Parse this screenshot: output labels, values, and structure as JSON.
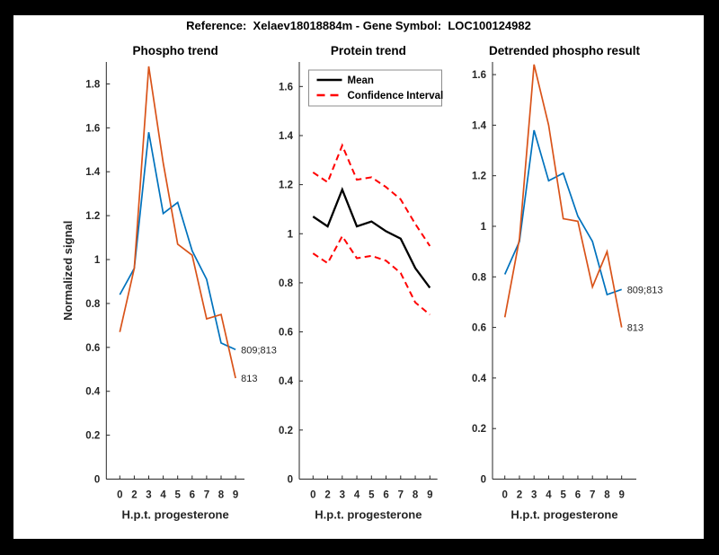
{
  "figure": {
    "title": "Reference:  Xelaev18018884m - Gene Symbol:  LOC100124982"
  },
  "colors": {
    "blue": "#0072BD",
    "orange": "#D95319",
    "red": "#FF0000",
    "black": "#000000",
    "axis": "#262626",
    "end_label_text": "#262626",
    "legend_border": "#8c8c8c",
    "background_frame": "#000000",
    "canvas": "#ffffff"
  },
  "chart_data": [
    {
      "id": "phospho-trend",
      "type": "line",
      "title": "Phospho trend",
      "xlabel": "H.p.t. progesterone",
      "ylabel": "Normalized signal",
      "grid": false,
      "categories": [
        "0",
        "2",
        "3",
        "4",
        "5",
        "6",
        "7",
        "8",
        "9"
      ],
      "ylim": [
        0,
        1.9
      ],
      "yticks": [
        "0",
        "0.2",
        "0.4",
        "0.6",
        "0.8",
        "1",
        "1.2",
        "1.4",
        "1.6",
        "1.8"
      ],
      "series": [
        {
          "name": "809;813",
          "color_key": "blue",
          "style": "solid",
          "width": 1.7,
          "end_label": "809;813",
          "values": [
            0.84,
            0.96,
            1.58,
            1.21,
            1.26,
            1.04,
            0.91,
            0.62,
            0.59
          ]
        },
        {
          "name": "813",
          "color_key": "orange",
          "style": "solid",
          "width": 1.7,
          "end_label": "813",
          "values": [
            0.67,
            0.96,
            1.88,
            1.44,
            1.07,
            1.02,
            0.73,
            0.75,
            0.46
          ]
        }
      ]
    },
    {
      "id": "protein-trend",
      "type": "line",
      "title": "Protein trend",
      "xlabel": "H.p.t. progesterone",
      "ylabel": "",
      "grid": false,
      "categories": [
        "0",
        "2",
        "3",
        "4",
        "5",
        "6",
        "7",
        "8",
        "9"
      ],
      "ylim": [
        0,
        1.7
      ],
      "yticks": [
        "0",
        "0.2",
        "0.4",
        "0.6",
        "0.8",
        "1",
        "1.2",
        "1.4",
        "1.6"
      ],
      "legend": {
        "position": "top-left",
        "items": [
          {
            "label": "Mean",
            "color_key": "black",
            "style": "solid"
          },
          {
            "label": "Confidence Interval",
            "color_key": "red",
            "style": "dashed"
          }
        ]
      },
      "series": [
        {
          "name": "Mean",
          "color_key": "black",
          "style": "solid",
          "width": 2.3,
          "values": [
            1.07,
            1.03,
            1.18,
            1.03,
            1.05,
            1.01,
            0.98,
            0.86,
            0.78
          ]
        },
        {
          "name": "Confidence Interval upper",
          "color_key": "red",
          "style": "dashed",
          "width": 2,
          "values": [
            1.25,
            1.21,
            1.36,
            1.22,
            1.23,
            1.19,
            1.14,
            1.04,
            0.95
          ]
        },
        {
          "name": "Confidence Interval lower",
          "color_key": "red",
          "style": "dashed",
          "width": 2,
          "values": [
            0.92,
            0.88,
            0.99,
            0.9,
            0.91,
            0.89,
            0.84,
            0.72,
            0.67
          ]
        }
      ]
    },
    {
      "id": "detrended-phospho-result",
      "type": "line",
      "title": "Detrended phospho result",
      "xlabel": "H.p.t. progesterone",
      "ylabel": "",
      "grid": false,
      "categories": [
        "0",
        "2",
        "3",
        "4",
        "5",
        "6",
        "7",
        "8",
        "9"
      ],
      "ylim": [
        0,
        1.65
      ],
      "yticks": [
        "0",
        "0.2",
        "0.4",
        "0.6",
        "0.8",
        "1",
        "1.2",
        "1.4",
        "1.6"
      ],
      "series": [
        {
          "name": "809;813",
          "color_key": "blue",
          "style": "solid",
          "width": 1.7,
          "end_label": "809;813",
          "values": [
            0.81,
            0.94,
            1.38,
            1.18,
            1.21,
            1.04,
            0.94,
            0.73,
            0.75
          ]
        },
        {
          "name": "813",
          "color_key": "orange",
          "style": "solid",
          "width": 1.7,
          "end_label": "813",
          "values": [
            0.64,
            0.95,
            1.64,
            1.4,
            1.03,
            1.02,
            0.76,
            0.9,
            0.6
          ]
        }
      ]
    }
  ]
}
